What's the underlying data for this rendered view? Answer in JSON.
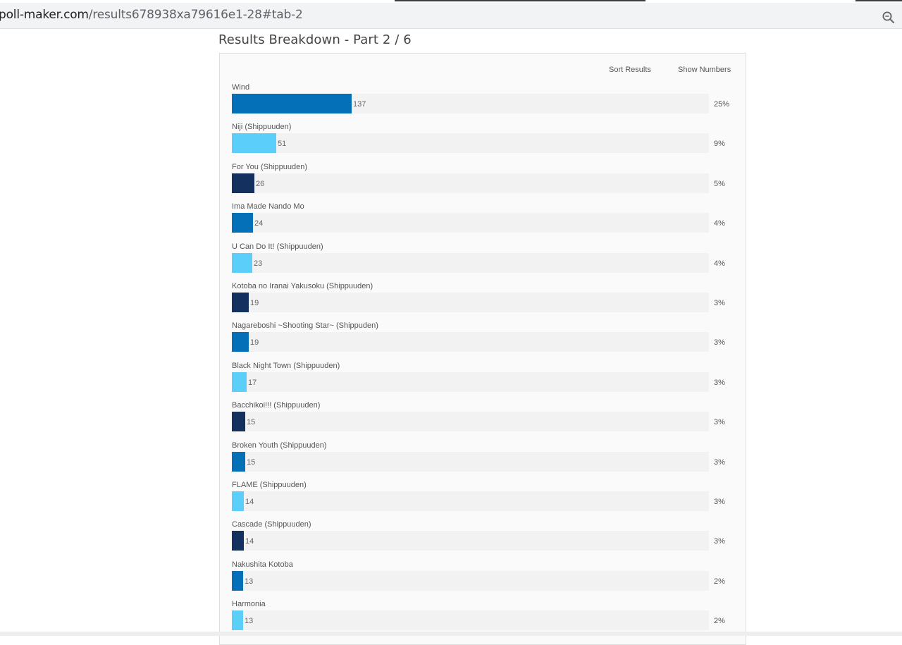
{
  "browser": {
    "url_host": "poll-maker.com",
    "url_path": "/results678938xa79616e1-28#tab-2",
    "zoom_icon": "zoom-icon"
  },
  "results": {
    "title": "Results Breakdown - Part 2 / 6",
    "sort_label": "Sort Results",
    "numbers_label": "Show Numbers",
    "max_votes": 137,
    "items": [
      {
        "label": "Wind",
        "votes": "137",
        "percent": "25%",
        "color": "#0370b8"
      },
      {
        "label": "Niji (Shippuuden)",
        "votes": "51",
        "percent": "9%",
        "color": "#5bcefa"
      },
      {
        "label": "For You (Shippuuden)",
        "votes": "26",
        "percent": "5%",
        "color": "#14305e"
      },
      {
        "label": "Ima Made Nando Mo",
        "votes": "24",
        "percent": "4%",
        "color": "#0370b8"
      },
      {
        "label": "U Can Do It! (Shippuuden)",
        "votes": "23",
        "percent": "4%",
        "color": "#5bcefa"
      },
      {
        "label": "Kotoba no Iranai Yakusoku (Shippuuden)",
        "votes": "19",
        "percent": "3%",
        "color": "#14305e"
      },
      {
        "label": "Nagareboshi ~Shooting Star~ (Shippuden)",
        "votes": "19",
        "percent": "3%",
        "color": "#0370b8"
      },
      {
        "label": "Black Night Town (Shippuuden)",
        "votes": "17",
        "percent": "3%",
        "color": "#5bcefa"
      },
      {
        "label": "Bacchikoi!!! (Shippuuden)",
        "votes": "15",
        "percent": "3%",
        "color": "#14305e"
      },
      {
        "label": "Broken Youth (Shippuuden)",
        "votes": "15",
        "percent": "3%",
        "color": "#0370b8"
      },
      {
        "label": "FLAME (Shippuuden)",
        "votes": "14",
        "percent": "3%",
        "color": "#5bcefa"
      },
      {
        "label": "Cascade (Shippuuden)",
        "votes": "14",
        "percent": "3%",
        "color": "#14305e"
      },
      {
        "label": "Nakushita Kotoba",
        "votes": "13",
        "percent": "2%",
        "color": "#0370b8"
      },
      {
        "label": "Harmonia",
        "votes": "13",
        "percent": "2%",
        "color": "#5bcefa"
      }
    ]
  }
}
